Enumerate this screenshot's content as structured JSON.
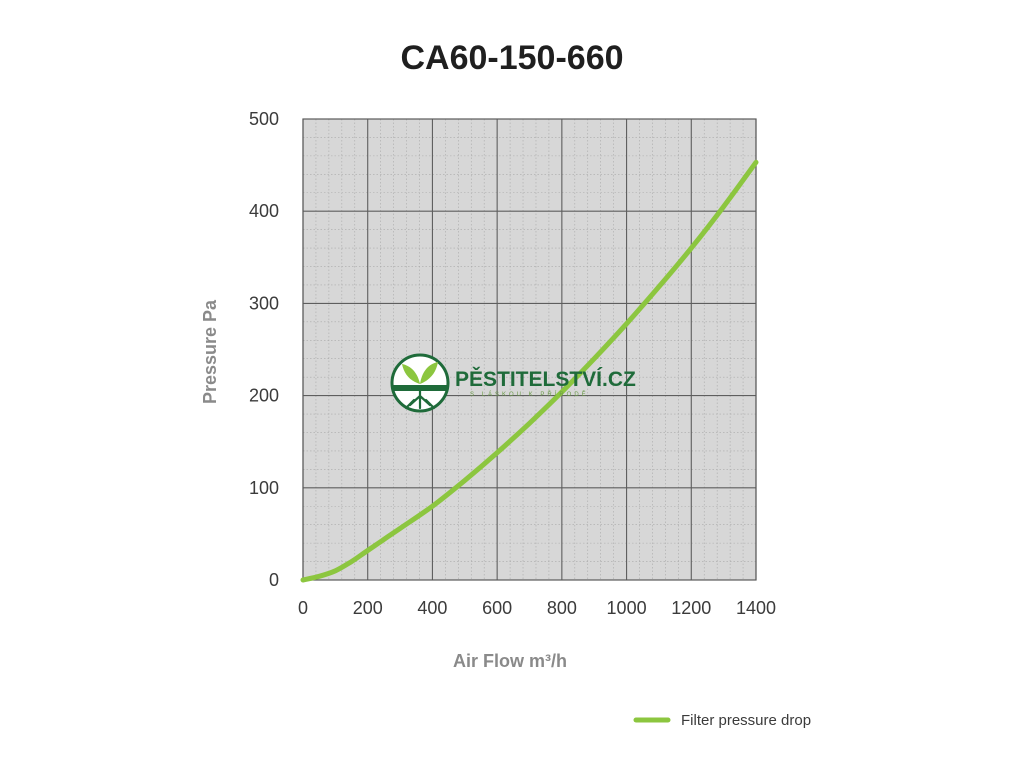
{
  "chart_data": {
    "type": "line",
    "title": "CA60-150-660",
    "xlabel": "Air Flow m³/h",
    "ylabel": "Pressure Pa",
    "xlim": [
      0,
      1400
    ],
    "ylim": [
      0,
      500
    ],
    "x_ticks": [
      "0",
      "200",
      "400",
      "600",
      "800",
      "1000",
      "1200",
      "1400"
    ],
    "y_ticks": [
      "0",
      "100",
      "200",
      "300",
      "400",
      "500"
    ],
    "grid": true,
    "legend_position": "bottom-right",
    "series": [
      {
        "name": "Filter pressure drop",
        "color": "#8cc63f",
        "x": [
          0,
          50,
          100,
          150,
          200,
          300,
          400,
          500,
          600,
          700,
          800,
          900,
          1000,
          1100,
          1200,
          1300,
          1400
        ],
        "y": [
          0,
          4,
          10,
          20,
          32,
          56,
          80,
          108,
          138,
          170,
          204,
          240,
          278,
          318,
          360,
          405,
          453
        ]
      }
    ]
  },
  "watermark": {
    "name": "PĚSTITELSTVÍ.CZ",
    "tagline": "S LÁSKOU K PŘÍRODĚ",
    "colors": {
      "green": "#1f6b3a",
      "light_green": "#8cc63f"
    }
  }
}
